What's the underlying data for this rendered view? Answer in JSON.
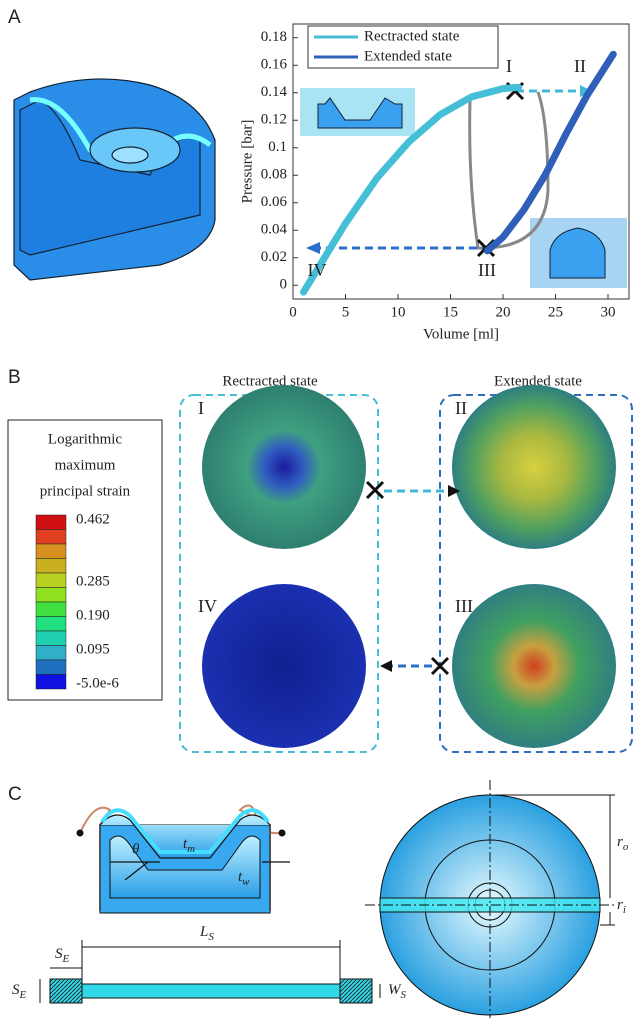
{
  "panel_labels": [
    "A",
    "B",
    "C"
  ],
  "chart_data": {
    "type": "line",
    "xlabel": "Volume [ml]",
    "ylabel": "Pressure [bar]",
    "xlim": [
      0,
      32
    ],
    "ylim": [
      -0.01,
      0.19
    ],
    "xticks": [
      0,
      5,
      10,
      15,
      20,
      25,
      30
    ],
    "yticks": [
      0,
      0.02,
      0.04,
      0.06,
      0.08,
      0.1,
      0.12,
      0.14,
      0.16,
      0.18
    ],
    "legend": "upper left",
    "series": [
      {
        "name": "Rectracted state",
        "color": "#45bfd6",
        "x": [
          1,
          3,
          5,
          8,
          11,
          14,
          17,
          20,
          21.5
        ],
        "values": [
          -0.005,
          0.02,
          0.045,
          0.078,
          0.104,
          0.124,
          0.137,
          0.143,
          0.144
        ]
      },
      {
        "name": "Extended state",
        "color": "#2f5fb8",
        "x": [
          18.5,
          20,
          22,
          24,
          26,
          28,
          30.5
        ],
        "values": [
          0.025,
          0.035,
          0.055,
          0.08,
          0.11,
          0.138,
          0.168
        ]
      }
    ],
    "annotations": [
      "I",
      "II",
      "III",
      "IV"
    ]
  },
  "panel_b": {
    "titles": [
      "Rectracted state",
      "Extended state"
    ],
    "numerals": [
      "I",
      "II",
      "IV",
      "III"
    ],
    "colorbar_title": [
      "Logarithmic",
      "maximum",
      "principal strain"
    ],
    "colorbar_labels": [
      "0.462",
      "0.285",
      "0.190",
      "0.095",
      "-5.0e-6"
    ]
  },
  "panel_c": {
    "theta": "θ",
    "tm": [
      "t",
      "m"
    ],
    "tw": [
      "t",
      "w"
    ],
    "ro": [
      "r",
      "o"
    ],
    "ri": [
      "r",
      "i"
    ],
    "se": [
      "S",
      "E"
    ],
    "ls": [
      "L",
      "S"
    ],
    "ws": [
      "W",
      "S"
    ]
  }
}
